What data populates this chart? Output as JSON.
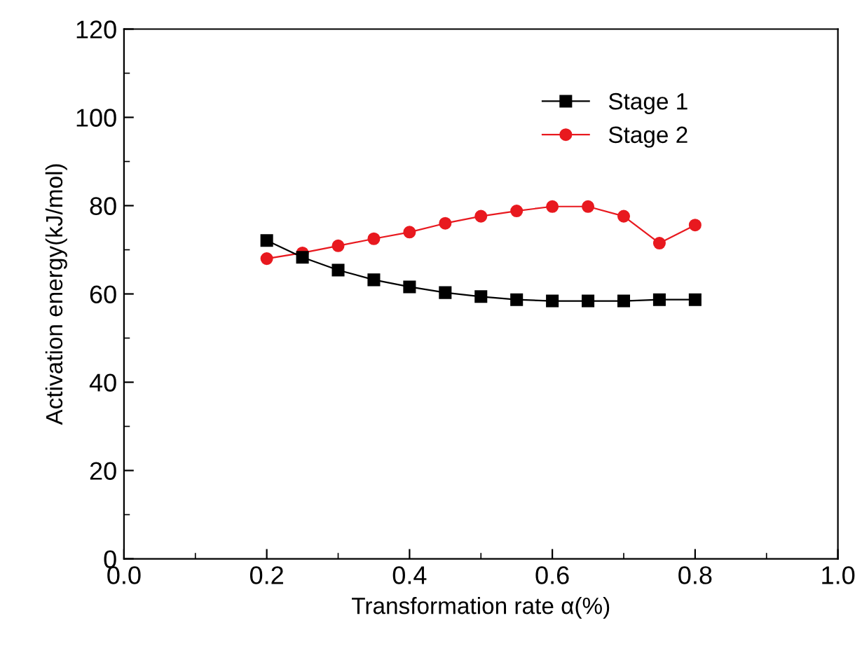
{
  "chart_data": {
    "type": "line",
    "xlabel": "Transformation rate α(%)",
    "ylabel": "Activation energy(kJ/mol)",
    "x": [
      0.2,
      0.25,
      0.3,
      0.35,
      0.4,
      0.45,
      0.5,
      0.55,
      0.6,
      0.65,
      0.7,
      0.75,
      0.8
    ],
    "series": [
      {
        "name": "Stage 1",
        "color": "#000000",
        "marker": "square",
        "values": [
          72.1,
          68.3,
          65.4,
          63.2,
          61.6,
          60.3,
          59.4,
          58.7,
          58.4,
          58.4,
          58.4,
          58.7,
          58.7
        ]
      },
      {
        "name": "Stage 2",
        "color": "#e8191f",
        "marker": "circle",
        "values": [
          68,
          69.3,
          70.9,
          72.5,
          74,
          76,
          77.6,
          78.8,
          79.8,
          79.8,
          77.6,
          71.5,
          75.6
        ]
      }
    ],
    "xlim": [
      0.0,
      1.0
    ],
    "xticks": [
      {
        "value": 0.0,
        "label": "0.0"
      },
      0.2,
      0.4,
      0.6,
      0.8,
      {
        "value": 1.0,
        "label": "1.0"
      }
    ],
    "ylim": [
      0,
      120
    ],
    "yticks": [
      0,
      20,
      40,
      60,
      80,
      100,
      120
    ],
    "legend": "top right",
    "grid": false
  }
}
